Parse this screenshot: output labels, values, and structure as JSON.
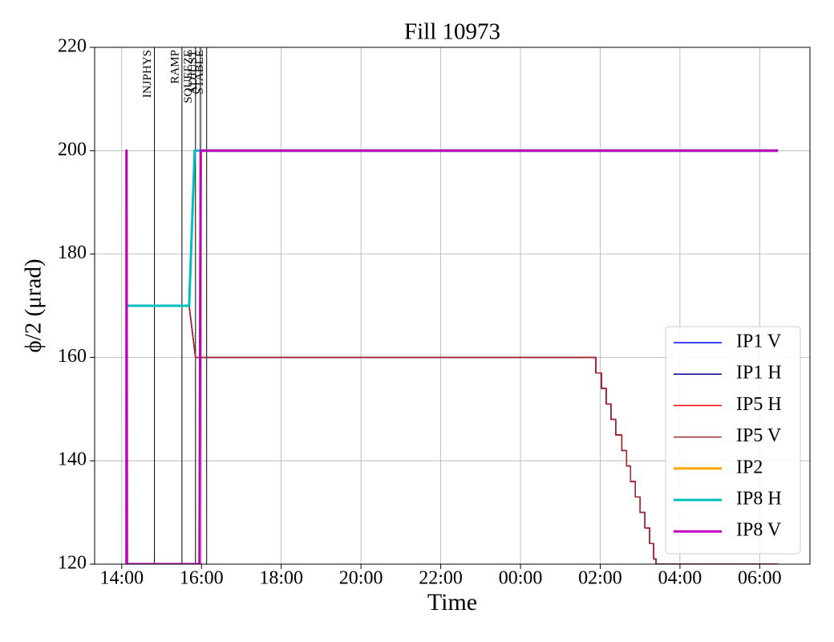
{
  "chart_data": {
    "type": "line",
    "title": "Fill 10973",
    "x_label": "Time",
    "y_label": "ϕ/2 (μrad)",
    "xlim": [
      13.32,
      31.26
    ],
    "ylim": [
      120,
      220
    ],
    "xticks": [
      {
        "value": 14,
        "label": "14:00"
      },
      {
        "value": 16,
        "label": "16:00"
      },
      {
        "value": 18,
        "label": "18:00"
      },
      {
        "value": 20,
        "label": "20:00"
      },
      {
        "value": 22,
        "label": "22:00"
      },
      {
        "value": 24,
        "label": "00:00"
      },
      {
        "value": 26,
        "label": "02:00"
      },
      {
        "value": 28,
        "label": "04:00"
      },
      {
        "value": 30,
        "label": "06:00"
      }
    ],
    "yticks": [
      120,
      140,
      160,
      180,
      200,
      220
    ],
    "grid": true,
    "legend": "lower right",
    "phases": [
      {
        "label": "INJPHYS",
        "x": 14.82
      },
      {
        "label": "RAMP",
        "x": 15.51
      },
      {
        "label": "SQUEEZE",
        "x": 15.85
      },
      {
        "label": "ADJUST",
        "x": 15.97
      },
      {
        "label": "STABLE",
        "x": 16.13
      }
    ],
    "series": [
      {
        "name": "IP1 V",
        "color": "#0000ff",
        "width": 1.5,
        "x": [
          14.12,
          15.69,
          15.85,
          25.89,
          25.89,
          26.03,
          26.03,
          26.15,
          26.15,
          26.27,
          26.27,
          26.39,
          26.39,
          26.54,
          26.54,
          26.66,
          26.66,
          26.76,
          26.76,
          26.88,
          26.88,
          27.0,
          27.0,
          27.12,
          27.12,
          27.24,
          27.24,
          27.34,
          27.34,
          27.4,
          27.4,
          30.46
        ],
        "values": [
          170,
          170,
          160,
          160,
          157,
          157,
          154,
          154,
          151,
          151,
          148,
          148,
          145,
          145,
          142,
          142,
          139,
          139,
          136,
          136,
          133,
          133,
          130,
          130,
          127,
          127,
          124,
          124,
          121,
          121,
          120,
          120
        ]
      },
      {
        "name": "IP1 H",
        "color": "#00008b",
        "width": 1.5,
        "x": [
          14.12,
          15.69,
          15.85,
          25.89,
          25.89,
          26.03,
          26.03,
          26.15,
          26.15,
          26.27,
          26.27,
          26.39,
          26.39,
          26.54,
          26.54,
          26.66,
          26.66,
          26.76,
          26.76,
          26.88,
          26.88,
          27.0,
          27.0,
          27.12,
          27.12,
          27.24,
          27.24,
          27.34,
          27.34,
          27.4,
          27.4,
          30.46
        ],
        "values": [
          170,
          170,
          160,
          160,
          157,
          157,
          154,
          154,
          151,
          151,
          148,
          148,
          145,
          145,
          142,
          142,
          139,
          139,
          136,
          136,
          133,
          133,
          130,
          130,
          127,
          127,
          124,
          124,
          121,
          121,
          120,
          120
        ]
      },
      {
        "name": "IP5 H",
        "color": "#ff0000",
        "width": 1.5,
        "x": [
          14.12,
          15.69,
          15.85,
          25.89,
          25.89,
          26.03,
          26.03,
          26.15,
          26.15,
          26.27,
          26.27,
          26.39,
          26.39,
          26.54,
          26.54,
          26.66,
          26.66,
          26.76,
          26.76,
          26.88,
          26.88,
          27.0,
          27.0,
          27.12,
          27.12,
          27.24,
          27.24,
          27.34,
          27.34,
          27.4,
          27.4,
          30.46
        ],
        "values": [
          170,
          170,
          160,
          160,
          157,
          157,
          154,
          154,
          151,
          151,
          148,
          148,
          145,
          145,
          142,
          142,
          139,
          139,
          136,
          136,
          133,
          133,
          130,
          130,
          127,
          127,
          124,
          124,
          121,
          121,
          120,
          120
        ]
      },
      {
        "name": "IP5 V",
        "color": "#a52a2a",
        "width": 1.5,
        "x": [
          14.12,
          15.69,
          15.85,
          25.89,
          25.89,
          26.03,
          26.03,
          26.15,
          26.15,
          26.27,
          26.27,
          26.39,
          26.39,
          26.54,
          26.54,
          26.66,
          26.66,
          26.76,
          26.76,
          26.88,
          26.88,
          27.0,
          27.0,
          27.12,
          27.12,
          27.24,
          27.24,
          27.34,
          27.34,
          27.4,
          27.4,
          30.46
        ],
        "values": [
          170,
          170,
          160,
          160,
          157,
          157,
          154,
          154,
          151,
          151,
          148,
          148,
          145,
          145,
          142,
          142,
          139,
          139,
          136,
          136,
          133,
          133,
          130,
          130,
          127,
          127,
          124,
          124,
          121,
          121,
          120,
          120
        ]
      },
      {
        "name": "IP2",
        "color": "#ffa500",
        "width": 3,
        "x": [
          14.12,
          14.12,
          14.13,
          15.95,
          15.98,
          30.46
        ],
        "values": [
          120,
          200,
          120,
          120,
          200,
          200
        ]
      },
      {
        "name": "IP8 H",
        "color": "#00bfbf",
        "width": 3,
        "x": [
          14.12,
          15.69,
          15.83,
          30.46
        ],
        "values": [
          170,
          170,
          200,
          200
        ]
      },
      {
        "name": "IP8 V",
        "color": "#bf00bf",
        "width": 3,
        "x": [
          14.12,
          14.12,
          14.13,
          15.95,
          15.98,
          30.46
        ],
        "values": [
          120,
          200,
          120,
          120,
          200,
          200
        ]
      }
    ]
  }
}
